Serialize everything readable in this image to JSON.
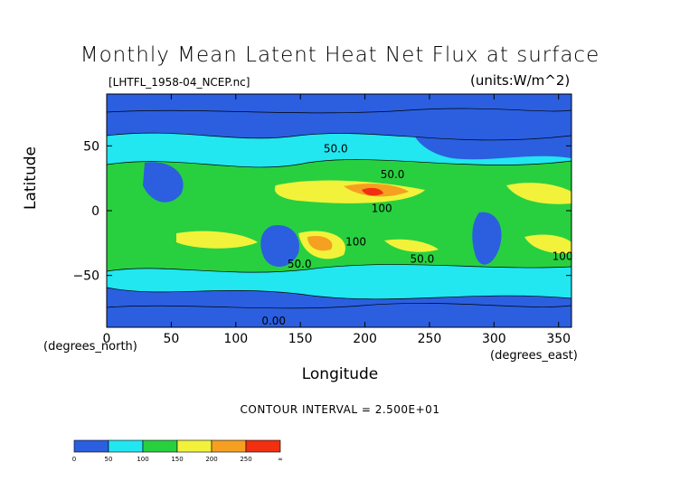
{
  "chart_data": {
    "type": "heatmap",
    "title": "Monthly Mean Latent Heat Net Flux at surface",
    "subtitle": "[LHTFL_1958-04_NCEP.nc]",
    "units_label": "(units:W/m^2)",
    "xlabel": "Longitude",
    "ylabel": "Latitude",
    "x_unit_label": "(degrees_east)",
    "y_unit_label": "(degrees_north)",
    "xlim": [
      0,
      360
    ],
    "ylim": [
      -90,
      90
    ],
    "x_ticks": [
      0,
      50,
      100,
      150,
      200,
      250,
      300,
      350
    ],
    "y_ticks": [
      -50,
      0,
      50
    ],
    "y_tick_labels": [
      "−50",
      "0",
      "50"
    ],
    "contour_interval_text": "CONTOUR INTERVAL = 2.500E+01",
    "contour_labels": [
      "50.0",
      "100",
      "0.00"
    ],
    "colorbar": {
      "ticks": [
        "0",
        "50",
        "100",
        "150",
        "200",
        "250",
        "∞"
      ],
      "colors": [
        "#2b5fe0",
        "#22e6f0",
        "#28d040",
        "#f2f23a",
        "#f5a020",
        "#f03010"
      ]
    },
    "legend": "bottom-left"
  }
}
